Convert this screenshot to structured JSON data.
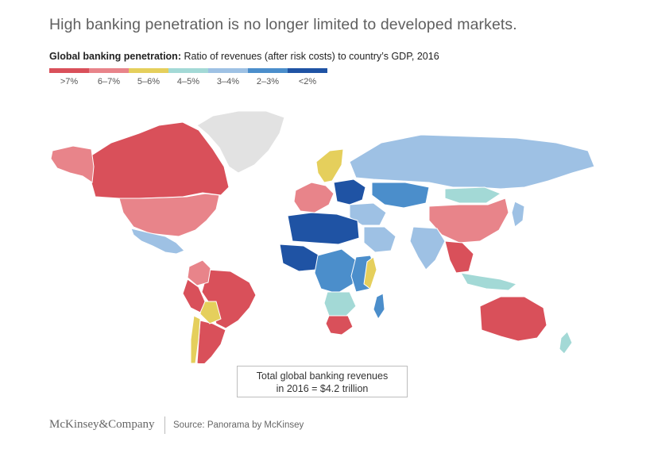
{
  "title": "High banking penetration is no longer limited to developed markets.",
  "subtitle": {
    "bold": "Global banking penetration:",
    "rest": " Ratio of revenues (after risk costs) to country’s GDP, 2016"
  },
  "legend": [
    {
      "label": ">7%",
      "color": "#d9505a"
    },
    {
      "label": "6–7%",
      "color": "#e8848a"
    },
    {
      "label": "5–6%",
      "color": "#e5cf5c"
    },
    {
      "label": "4–5%",
      "color": "#a3d9d6"
    },
    {
      "label": "3–4%",
      "color": "#9ec1e4"
    },
    {
      "label": "2–3%",
      "color": "#4b8ecb"
    },
    {
      "label": "<2%",
      "color": "#1f53a4"
    }
  ],
  "no_data_color": "#e2e2e2",
  "callout": {
    "line1": "Total global banking revenues",
    "line2": "in 2016 = $4.2 trillion"
  },
  "footer": {
    "logo": "McKinsey&Company",
    "source": "Source: Panorama by McKinsey"
  },
  "regions": [
    {
      "name": "Canada",
      "band": ">7%"
    },
    {
      "name": "Alaska",
      "band": "6–7%"
    },
    {
      "name": "United States",
      "band": "6–7%"
    },
    {
      "name": "Greenland",
      "band": "no data"
    },
    {
      "name": "Mexico",
      "band": "3–4%"
    },
    {
      "name": "Brazil",
      "band": ">7%"
    },
    {
      "name": "Argentina",
      "band": ">7%"
    },
    {
      "name": "Bolivia",
      "band": "5–6%"
    },
    {
      "name": "Peru",
      "band": ">7%"
    },
    {
      "name": "Colombia",
      "band": "6–7%"
    },
    {
      "name": "Chile",
      "band": "5–6%"
    },
    {
      "name": "Russia",
      "band": "3–4%"
    },
    {
      "name": "China",
      "band": "6–7%"
    },
    {
      "name": "Mongolia",
      "band": "4–5%"
    },
    {
      "name": "Kazakhstan",
      "band": "2–3%"
    },
    {
      "name": "India",
      "band": "3–4%"
    },
    {
      "name": "Southeast Asia",
      "band": ">7%"
    },
    {
      "name": "Indonesia",
      "band": "4–5%"
    },
    {
      "name": "Australia",
      "band": ">7%"
    },
    {
      "name": "New Zealand",
      "band": "4–5%"
    },
    {
      "name": "Japan",
      "band": "3–4%"
    },
    {
      "name": "Scandinavia",
      "band": "5–6%"
    },
    {
      "name": "Western Europe",
      "band": "6–7%"
    },
    {
      "name": "Eastern Europe",
      "band": "<2%"
    },
    {
      "name": "Middle East",
      "band": "3–4%"
    },
    {
      "name": "Saudi Arabia",
      "band": "3–4%"
    },
    {
      "name": "North Africa",
      "band": "<2%"
    },
    {
      "name": "West Africa",
      "band": "<2%"
    },
    {
      "name": "Central Africa",
      "band": "2–3%"
    },
    {
      "name": "East Africa",
      "band": "2–3%"
    },
    {
      "name": "Somalia",
      "band": "5–6%"
    },
    {
      "name": "Southern Africa",
      "band": "4–5%"
    },
    {
      "name": "South Africa",
      "band": ">7%"
    },
    {
      "name": "Madagascar",
      "band": "2–3%"
    }
  ]
}
